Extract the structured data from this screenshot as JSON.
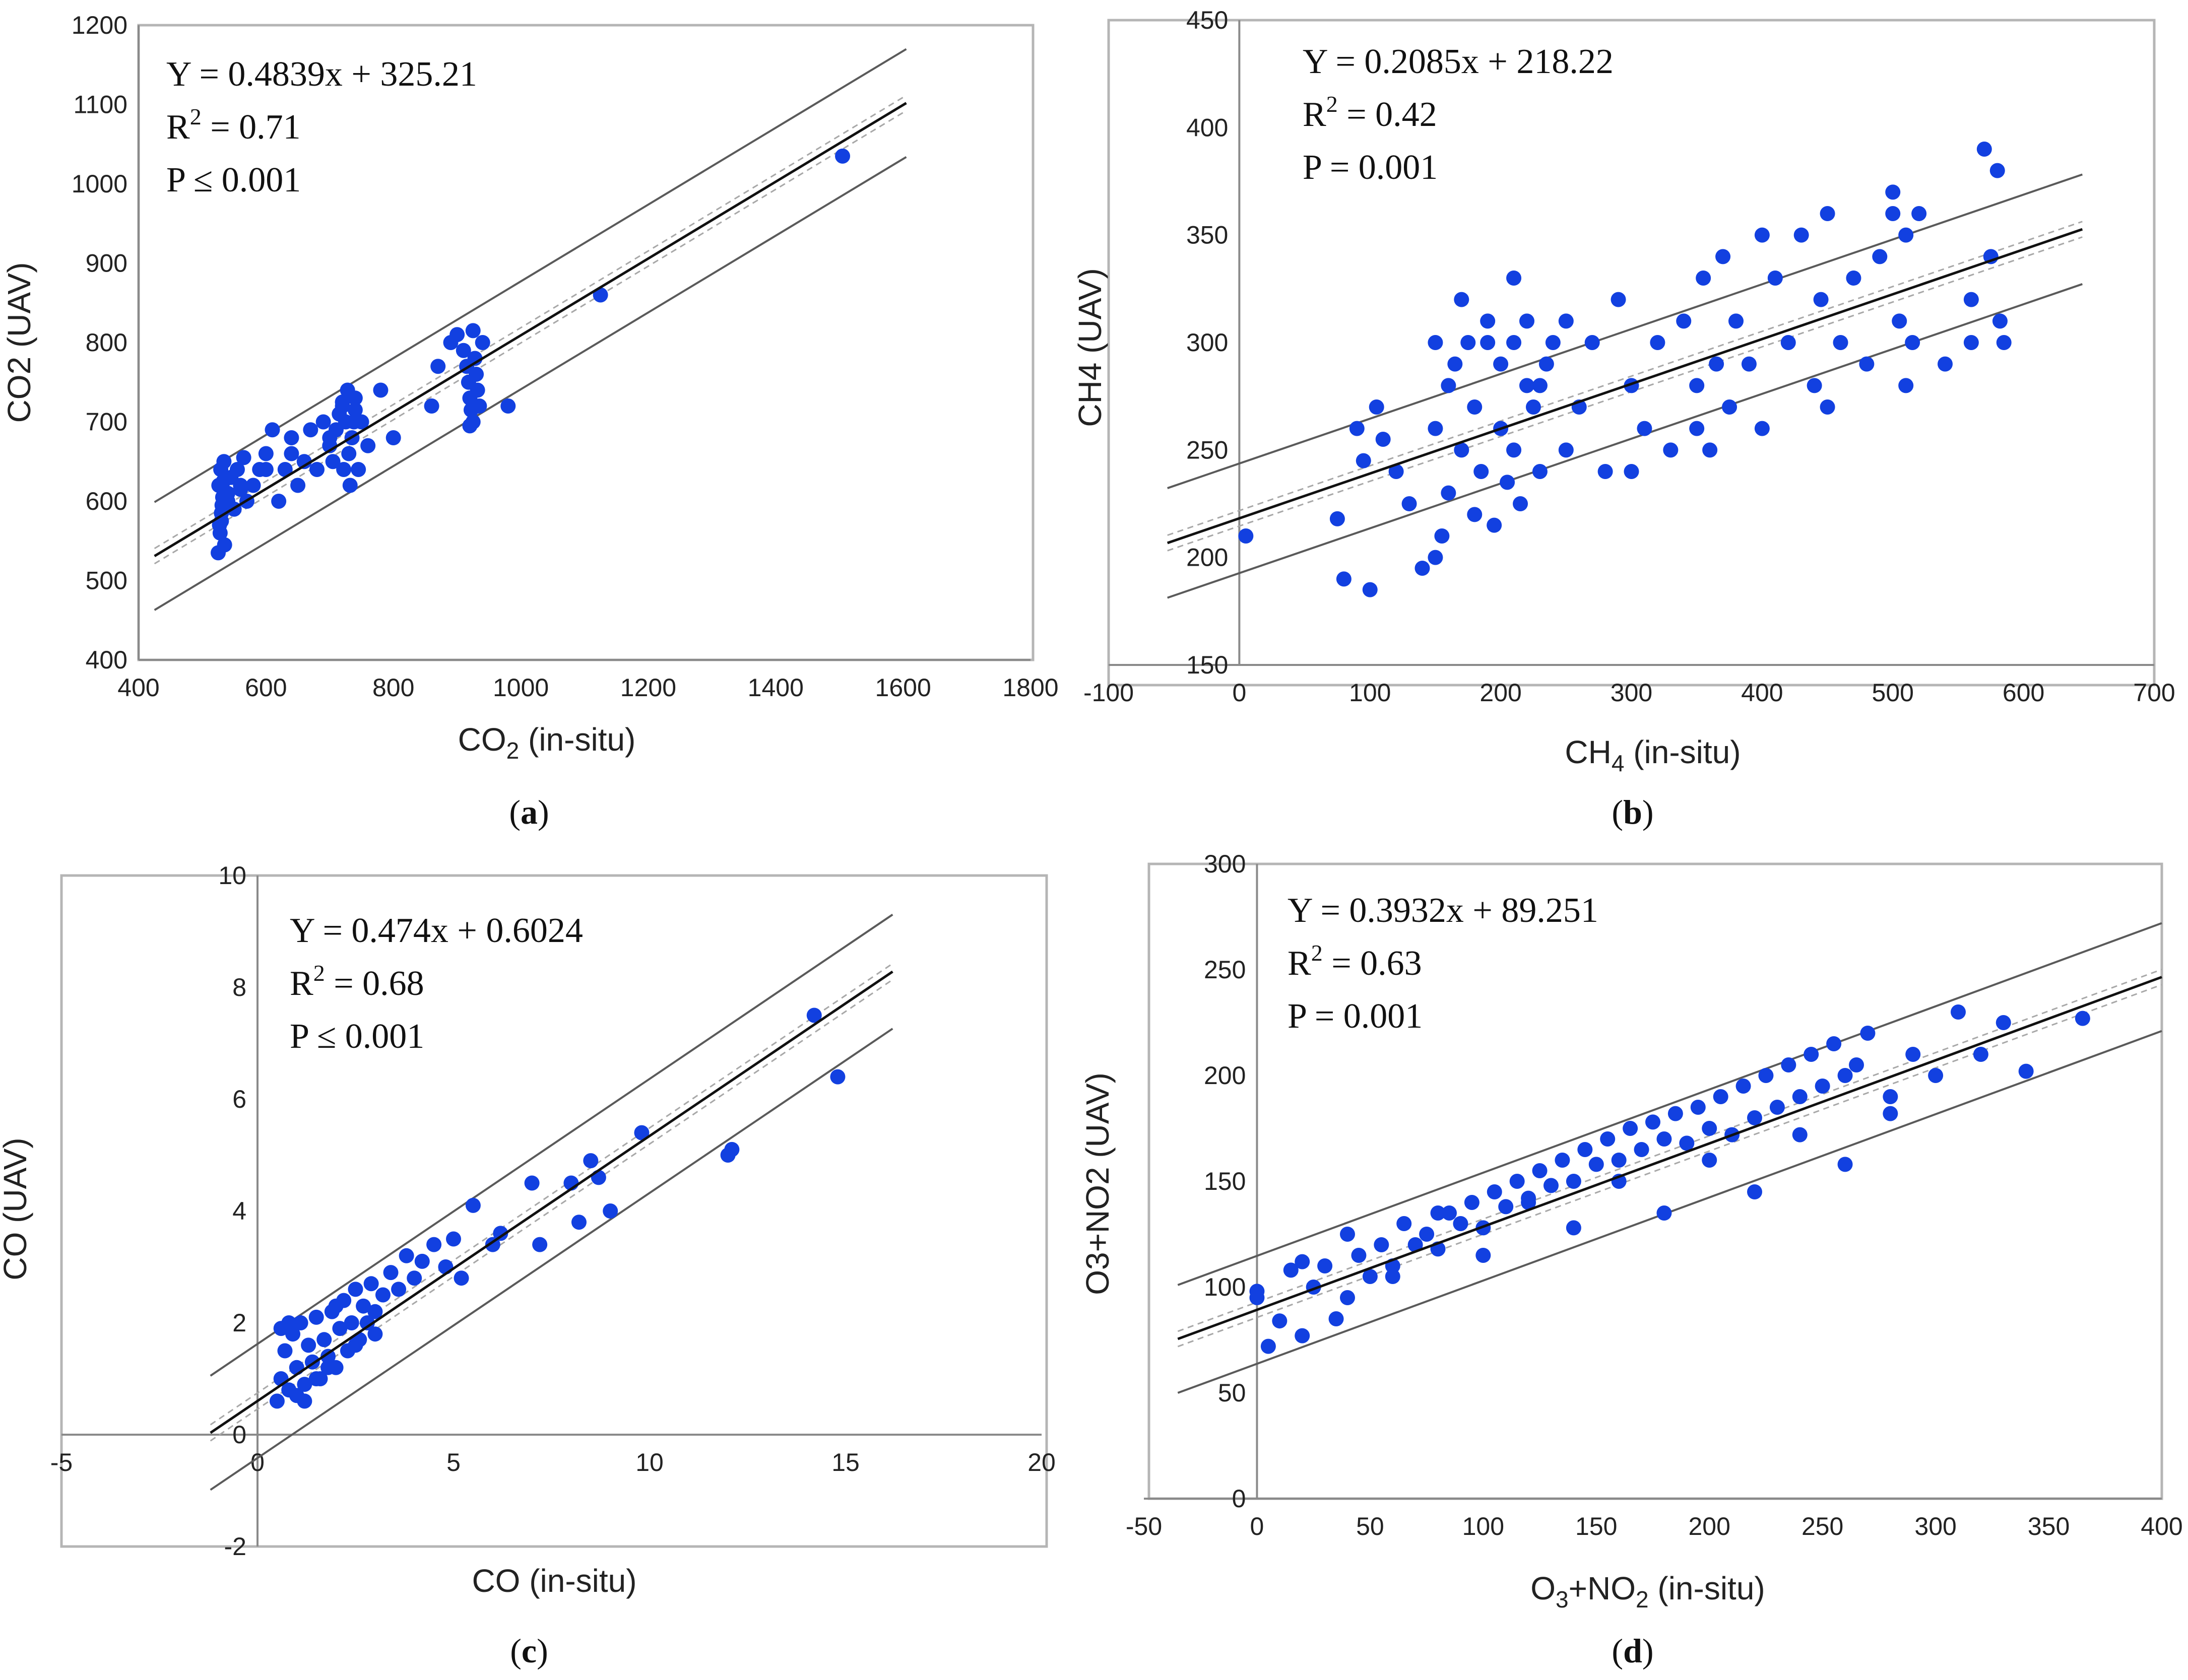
{
  "chart_data": [
    {
      "type": "scatter",
      "panel_label": "a",
      "xlabel": "CO",
      "xlabel_sub": "2",
      "xlabel_tail": " (in-situ)",
      "ylabel": "CO2 (UAV)",
      "xlim": [
        400,
        1800
      ],
      "ylim": [
        400,
        1200
      ],
      "xticks": [
        "400",
        "600",
        "800",
        "1000",
        "1200",
        "1400",
        "1600",
        "1800"
      ],
      "yticks": [
        "400",
        "500",
        "600",
        "700",
        "800",
        "900",
        "1000",
        "1100",
        "1200"
      ],
      "equation": "Y = 0.4839x + 325.21",
      "r2_label": "R",
      "r2_value": " = 0.71",
      "p_value": "P ≤ 0.001",
      "fit": {
        "slope": 0.4839,
        "intercept": 325.21,
        "x_range": [
          425,
          1605
        ]
      },
      "marker_color": "#1240e0",
      "line_color": "#111111",
      "x": [
        525,
        528,
        530,
        532,
        526,
        529,
        534,
        527,
        531,
        533,
        535,
        538,
        540,
        545,
        550,
        555,
        560,
        565,
        570,
        580,
        590,
        600,
        610,
        620,
        630,
        640,
        650,
        660,
        670,
        680,
        690,
        700,
        705,
        710,
        715,
        720,
        722,
        725,
        728,
        730,
        732,
        735,
        738,
        740,
        745,
        750,
        760,
        780,
        800,
        860,
        870,
        890,
        900,
        910,
        915,
        918,
        920,
        922,
        925,
        928,
        930,
        932,
        935,
        940,
        980,
        1125,
        1505,
        530,
        540,
        560,
        600,
        640,
        700,
        720,
        740,
        920,
        925
      ],
      "y": [
        535,
        560,
        585,
        605,
        620,
        640,
        650,
        570,
        595,
        625,
        545,
        610,
        600,
        630,
        590,
        640,
        615,
        655,
        600,
        620,
        640,
        660,
        690,
        600,
        640,
        680,
        620,
        650,
        690,
        640,
        700,
        670,
        650,
        690,
        710,
        725,
        640,
        700,
        740,
        660,
        620,
        680,
        700,
        730,
        640,
        700,
        670,
        740,
        680,
        720,
        770,
        800,
        810,
        790,
        770,
        750,
        730,
        715,
        700,
        780,
        760,
        740,
        720,
        800,
        720,
        860,
        1035,
        575,
        610,
        620,
        640,
        660,
        680,
        720,
        715,
        695,
        815
      ]
    },
    {
      "type": "scatter",
      "panel_label": "b",
      "xlabel": "CH",
      "xlabel_sub": "4",
      "xlabel_tail": " (in-situ)",
      "ylabel": "CH4 (UAV)",
      "xlim": [
        -100,
        700
      ],
      "ylim": [
        150,
        450
      ],
      "xticks": [
        "-100",
        "0",
        "100",
        "200",
        "300",
        "400",
        "500",
        "600",
        "700"
      ],
      "yticks": [
        "150",
        "200",
        "250",
        "300",
        "350",
        "400",
        "450"
      ],
      "equation": "Y = 0.2085x + 218.22",
      "r2_label": "R",
      "r2_value": " = 0.42",
      "p_value": "P = 0.001",
      "fit": {
        "slope": 0.2085,
        "intercept": 218.22,
        "x_range": [
          -55,
          645
        ]
      },
      "marker_color": "#1240e0",
      "line_color": "#111111",
      "x": [
        5,
        75,
        80,
        90,
        95,
        100,
        105,
        110,
        120,
        130,
        140,
        150,
        150,
        155,
        160,
        160,
        165,
        170,
        175,
        180,
        180,
        185,
        190,
        195,
        200,
        200,
        205,
        210,
        210,
        215,
        220,
        220,
        225,
        230,
        235,
        240,
        250,
        260,
        270,
        280,
        290,
        300,
        310,
        320,
        330,
        340,
        350,
        355,
        360,
        365,
        370,
        375,
        380,
        390,
        400,
        410,
        420,
        430,
        440,
        445,
        450,
        460,
        470,
        480,
        490,
        500,
        505,
        510,
        510,
        515,
        520,
        540,
        560,
        570,
        575,
        580,
        582,
        585,
        150,
        170,
        190,
        210,
        230,
        250,
        300,
        350,
        400,
        450,
        500,
        560
      ],
      "y": [
        210,
        218,
        190,
        260,
        245,
        185,
        270,
        255,
        240,
        225,
        195,
        260,
        300,
        210,
        280,
        230,
        290,
        250,
        300,
        220,
        270,
        240,
        310,
        215,
        260,
        290,
        235,
        300,
        250,
        225,
        280,
        310,
        270,
        240,
        290,
        300,
        250,
        270,
        300,
        240,
        320,
        280,
        260,
        300,
        250,
        310,
        280,
        330,
        250,
        290,
        340,
        270,
        310,
        290,
        260,
        330,
        300,
        350,
        280,
        320,
        360,
        300,
        330,
        290,
        340,
        370,
        310,
        350,
        280,
        300,
        360,
        290,
        320,
        390,
        340,
        380,
        310,
        300,
        200,
        320,
        300,
        330,
        280,
        310,
        240,
        260,
        350,
        270,
        360,
        300
      ]
    },
    {
      "type": "scatter",
      "panel_label": "c",
      "xlabel": "CO (in-situ)",
      "xlabel_sub": "",
      "xlabel_tail": "",
      "ylabel": "CO (UAV)",
      "xlim": [
        -5,
        20
      ],
      "ylim": [
        -2,
        10
      ],
      "xticks": [
        "-5",
        "0",
        "5",
        "10",
        "15",
        "20"
      ],
      "yticks": [
        "-2",
        "0",
        "2",
        "4",
        "6",
        "8",
        "10"
      ],
      "equation": "Y = 0.474x + 0.6024",
      "r2_label": "R",
      "r2_value": " = 0.68",
      "p_value": "P ≤ 0.001",
      "fit": {
        "slope": 0.474,
        "intercept": 0.6024,
        "x_range": [
          -1.2,
          16.2
        ]
      },
      "marker_color": "#1240e0",
      "line_color": "#111111",
      "x": [
        0.5,
        0.6,
        0.7,
        0.8,
        0.9,
        1.0,
        1.1,
        1.2,
        1.3,
        1.4,
        1.5,
        1.6,
        1.7,
        1.8,
        1.9,
        2.0,
        2.1,
        2.2,
        2.3,
        2.4,
        2.5,
        2.6,
        2.7,
        2.8,
        2.9,
        3.0,
        3.2,
        3.4,
        3.6,
        3.8,
        4.0,
        4.2,
        4.5,
        4.8,
        5.0,
        5.2,
        5.5,
        6.0,
        6.2,
        7.0,
        7.2,
        8.0,
        8.2,
        8.5,
        8.7,
        9.0,
        9.8,
        12.0,
        12.1,
        14.2,
        14.8,
        0.6,
        0.8,
        1.0,
        1.2,
        1.5,
        1.8,
        2.0,
        2.5,
        3.0
      ],
      "y": [
        0.6,
        1.0,
        1.5,
        0.8,
        1.8,
        1.2,
        2.0,
        0.9,
        1.6,
        1.3,
        2.1,
        1.0,
        1.7,
        1.4,
        2.2,
        1.2,
        1.9,
        2.4,
        1.5,
        2.0,
        2.6,
        1.7,
        2.3,
        2.0,
        2.7,
        2.2,
        2.5,
        2.9,
        2.6,
        3.2,
        2.8,
        3.1,
        3.4,
        3.0,
        3.5,
        2.8,
        4.1,
        3.4,
        3.6,
        4.5,
        3.4,
        4.5,
        3.8,
        4.9,
        4.6,
        4.0,
        5.4,
        5.0,
        5.1,
        7.5,
        6.4,
        1.9,
        2.0,
        0.7,
        0.6,
        1.0,
        1.2,
        2.3,
        1.6,
        1.8
      ]
    },
    {
      "type": "scatter",
      "panel_label": "d",
      "xlabel": "O",
      "xlabel_sub": "3",
      "xlabel_mid": "+NO",
      "xlabel_sub2": "2",
      "xlabel_tail": " (in-situ)",
      "ylabel": "O3+NO2 (UAV)",
      "xlim": [
        -50,
        400
      ],
      "ylim": [
        0,
        300
      ],
      "xticks": [
        "-50",
        "0",
        "50",
        "100",
        "150",
        "200",
        "250",
        "300",
        "350",
        "400"
      ],
      "yticks": [
        "0",
        "50",
        "100",
        "150",
        "200",
        "250",
        "300"
      ],
      "equation": "Y = 0.3932x + 89.251",
      "r2_label": "R",
      "r2_value": " = 0.63",
      "p_value": "P = 0.001",
      "fit": {
        "slope": 0.3932,
        "intercept": 89.251,
        "x_range": [
          -35,
          400
        ]
      },
      "marker_color": "#1240e0",
      "line_color": "#111111",
      "x": [
        0,
        5,
        10,
        15,
        20,
        25,
        30,
        35,
        40,
        45,
        50,
        55,
        60,
        65,
        70,
        75,
        80,
        85,
        90,
        95,
        100,
        105,
        110,
        115,
        120,
        125,
        130,
        135,
        140,
        145,
        150,
        155,
        160,
        165,
        170,
        175,
        180,
        185,
        190,
        195,
        200,
        205,
        210,
        215,
        220,
        225,
        230,
        235,
        240,
        245,
        250,
        255,
        260,
        265,
        270,
        280,
        290,
        300,
        310,
        320,
        330,
        340,
        365,
        0,
        20,
        40,
        60,
        80,
        100,
        120,
        140,
        160,
        180,
        200,
        220,
        240,
        260,
        280
      ],
      "y": [
        95,
        72,
        84,
        108,
        77,
        100,
        110,
        85,
        95,
        115,
        105,
        120,
        110,
        130,
        120,
        125,
        118,
        135,
        130,
        140,
        128,
        145,
        138,
        150,
        142,
        155,
        148,
        160,
        150,
        165,
        158,
        170,
        160,
        175,
        165,
        178,
        170,
        182,
        168,
        185,
        175,
        190,
        172,
        195,
        180,
        200,
        185,
        205,
        190,
        210,
        195,
        215,
        200,
        205,
        220,
        190,
        210,
        200,
        230,
        210,
        225,
        202,
        227,
        98,
        112,
        125,
        105,
        135,
        115,
        140,
        128,
        150,
        135,
        160,
        145,
        172,
        158,
        182
      ]
    }
  ]
}
